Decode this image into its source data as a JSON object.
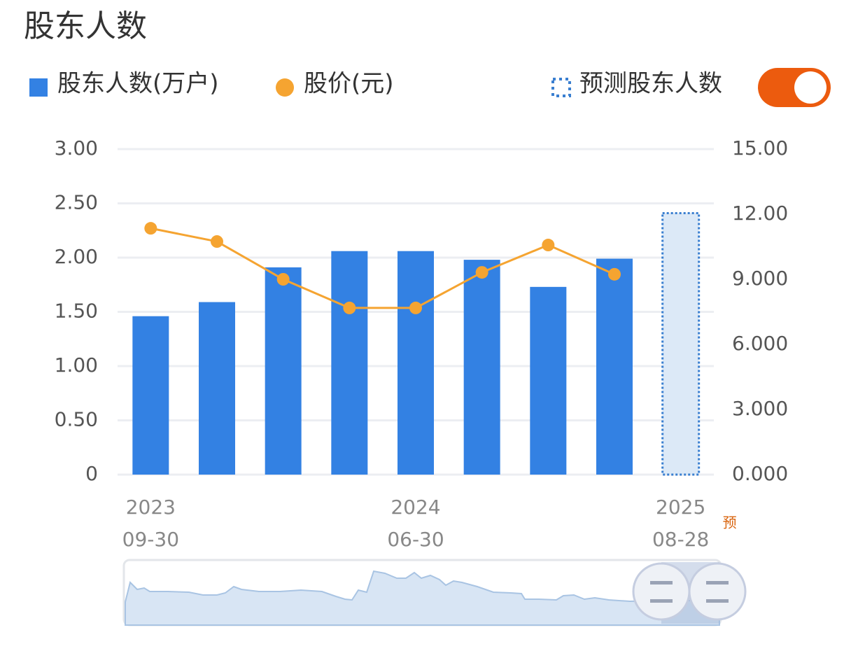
{
  "chart_data": {
    "type": "bar_line",
    "title": "股东人数",
    "categories": [
      [
        "2023",
        "09-30"
      ],
      null,
      null,
      null,
      [
        "2024",
        "06-30"
      ],
      null,
      null,
      null,
      [
        "2025",
        "08-28"
      ]
    ],
    "series": [
      {
        "name": "股东人数(万户)",
        "type": "bar",
        "color": "#3381e3",
        "values": [
          1.46,
          1.59,
          1.91,
          2.06,
          2.06,
          1.98,
          1.73,
          1.99,
          null
        ]
      },
      {
        "name": "股价(元)",
        "type": "line",
        "axis": "y2",
        "color": "#f5a431",
        "values": [
          11.35,
          10.74,
          9.0,
          7.68,
          7.68,
          9.32,
          10.58,
          9.23,
          null
        ]
      },
      {
        "name": "预测股东人数",
        "type": "forecast",
        "color": "#3a7fd0",
        "values": [
          null,
          null,
          null,
          null,
          null,
          null,
          null,
          null,
          2.41
        ]
      }
    ],
    "forecast_mark": "预",
    "ylim": [
      0,
      3
    ],
    "yticks": [
      0,
      {
        "value": 0.5,
        "label": "0.50"
      },
      {
        "value": 1,
        "label": "1.00"
      },
      {
        "value": 1.5,
        "label": "1.50"
      },
      {
        "value": 2,
        "label": "2.00"
      },
      {
        "value": 2.5,
        "label": "2.50"
      },
      {
        "value": 3,
        "label": "3.00"
      }
    ],
    "y2lim": [
      0,
      15
    ],
    "y2ticks": [
      {
        "value": 0,
        "label": "0.000"
      },
      {
        "value": 3,
        "label": "3.000"
      },
      {
        "value": 6,
        "label": "6.000"
      },
      {
        "value": 9,
        "label": "9.000"
      },
      {
        "value": 12,
        "label": "12.00"
      },
      {
        "value": 15,
        "label": "15.00"
      }
    ],
    "grid": true
  }
}
